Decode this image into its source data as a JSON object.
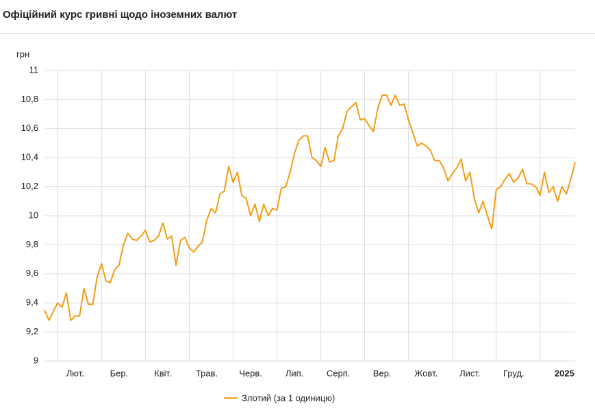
{
  "chart_data": {
    "type": "line",
    "title": "Офіційний курс гривні щодо іноземних валют",
    "y_label": "грн",
    "categories": [
      null,
      null,
      null,
      null,
      null,
      null,
      null,
      "Лют.",
      null,
      null,
      null,
      null,
      null,
      null,
      null,
      null,
      null,
      "Бер.",
      null,
      null,
      null,
      null,
      null,
      null,
      null,
      null,
      null,
      "Квіт.",
      null,
      null,
      null,
      null,
      null,
      null,
      null,
      null,
      null,
      "Трав.",
      null,
      null,
      null,
      null,
      null,
      null,
      null,
      null,
      null,
      "Черв.",
      null,
      null,
      null,
      null,
      null,
      null,
      null,
      null,
      null,
      "Лип.",
      null,
      null,
      null,
      null,
      null,
      null,
      null,
      null,
      null,
      "Серп.",
      null,
      null,
      null,
      null,
      null,
      null,
      null,
      null,
      null,
      "Вер.",
      null,
      null,
      null,
      null,
      null,
      null,
      null,
      null,
      null,
      "Жовт.",
      null,
      null,
      null,
      null,
      null,
      null,
      null,
      null,
      null,
      "Лист.",
      null,
      null,
      null,
      null,
      null,
      null,
      null,
      null,
      null,
      "Груд.",
      null,
      null,
      null,
      null,
      null,
      null,
      null,
      null,
      null,
      "2025",
      null,
      null,
      null,
      null
    ],
    "series": [
      {
        "name": "Злотий (за 1 одиницю)",
        "color": "#f39c12",
        "values": [
          9.35,
          9.28,
          9.34,
          9.4,
          9.37,
          9.47,
          9.28,
          9.31,
          9.31,
          9.5,
          9.39,
          9.39,
          9.58,
          9.67,
          9.55,
          9.54,
          9.63,
          9.66,
          9.8,
          9.88,
          9.84,
          9.83,
          9.86,
          9.9,
          9.82,
          9.83,
          9.86,
          9.95,
          9.84,
          9.86,
          9.66,
          9.83,
          9.85,
          9.78,
          9.75,
          9.79,
          9.82,
          9.97,
          10.05,
          10.02,
          10.15,
          10.17,
          10.34,
          10.23,
          10.3,
          10.14,
          10.12,
          10.0,
          10.08,
          9.96,
          10.08,
          10.0,
          10.05,
          10.04,
          10.19,
          10.2,
          10.3,
          10.43,
          10.52,
          10.55,
          10.55,
          10.4,
          10.38,
          10.34,
          10.47,
          10.37,
          10.38,
          10.55,
          10.6,
          10.72,
          10.75,
          10.78,
          10.66,
          10.67,
          10.62,
          10.58,
          10.74,
          10.83,
          10.83,
          10.76,
          10.83,
          10.76,
          10.77,
          10.66,
          10.57,
          10.48,
          10.5,
          10.48,
          10.45,
          10.38,
          10.38,
          10.33,
          10.24,
          10.29,
          10.33,
          10.39,
          10.24,
          10.3,
          10.12,
          10.02,
          10.1,
          10.0,
          9.91,
          10.18,
          10.2,
          10.25,
          10.29,
          10.23,
          10.26,
          10.32,
          10.22,
          10.22,
          10.2,
          10.14,
          10.3,
          10.16,
          10.2,
          10.1,
          10.2,
          10.15,
          10.25,
          10.37
        ]
      }
    ],
    "ylim": [
      9,
      11
    ],
    "yticks": [
      9,
      {
        "value": 9.2,
        "label": "9,2"
      },
      {
        "value": 9.4,
        "label": "9,4"
      },
      {
        "value": 9.6,
        "label": "9,6"
      },
      {
        "value": 9.8,
        "label": "9,8"
      },
      10,
      {
        "value": 10.2,
        "label": "10,2"
      },
      {
        "value": 10.4,
        "label": "10,4"
      },
      {
        "value": 10.6,
        "label": "10,6"
      },
      {
        "value": 10.8,
        "label": "10,8"
      },
      11
    ],
    "grid": true
  }
}
